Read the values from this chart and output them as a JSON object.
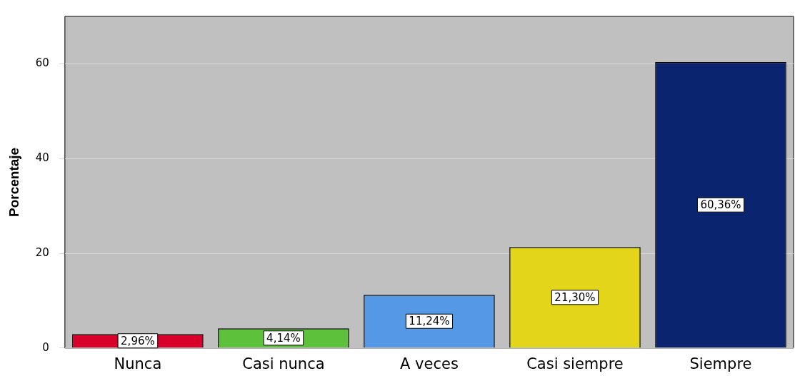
{
  "chart_data": {
    "type": "bar",
    "ylabel": "Porcentaje",
    "categories": [
      "Nunca",
      "Casi nunca",
      "A veces",
      "Casi siempre",
      "Siempre"
    ],
    "values": [
      2.96,
      4.14,
      11.24,
      21.3,
      60.36
    ],
    "value_labels": [
      "2,96%",
      "4,14%",
      "11,24%",
      "21,30%",
      "60,36%"
    ],
    "colors": [
      "#d8002a",
      "#5ec13c",
      "#5599e6",
      "#e3d51a",
      "#0b2470"
    ],
    "ylim": [
      0,
      70
    ],
    "yticks": [
      0,
      20,
      40,
      60
    ],
    "grid": "y"
  }
}
